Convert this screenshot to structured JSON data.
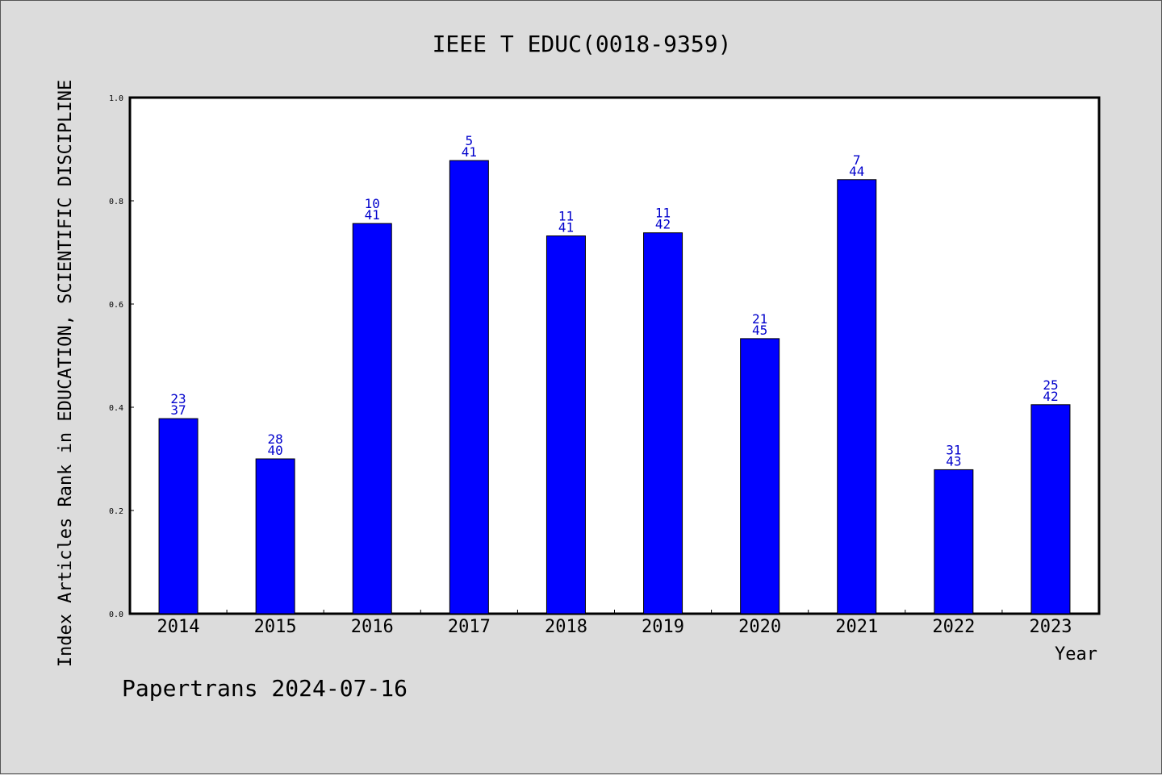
{
  "chart_data": {
    "type": "bar",
    "title": "IEEE T EDUC(0018-9359)",
    "xlabel": "Year",
    "ylabel": "Index Articles Rank in EDUCATION, SCIENTIFIC DISCIPLINE",
    "ylim": [
      0,
      1.0
    ],
    "yticks": [
      "0.0",
      "0.2",
      "0.4",
      "0.6",
      "0.8",
      "1.0"
    ],
    "grid": false,
    "categories": [
      "2014",
      "2015",
      "2016",
      "2017",
      "2018",
      "2019",
      "2020",
      "2021",
      "2022",
      "2023"
    ],
    "values": [
      0.378,
      0.3,
      0.756,
      0.878,
      0.732,
      0.738,
      0.533,
      0.841,
      0.279,
      0.405
    ],
    "rank_labels": [
      "23",
      "28",
      "10",
      "5",
      "11",
      "11",
      "21",
      "7",
      "31",
      "25"
    ],
    "total_labels": [
      "37",
      "40",
      "41",
      "41",
      "41",
      "42",
      "45",
      "44",
      "43",
      "42"
    ],
    "bar_color": "#0000ff",
    "label_color": "#0000cc"
  },
  "footer": "Papertrans 2024-07-16"
}
